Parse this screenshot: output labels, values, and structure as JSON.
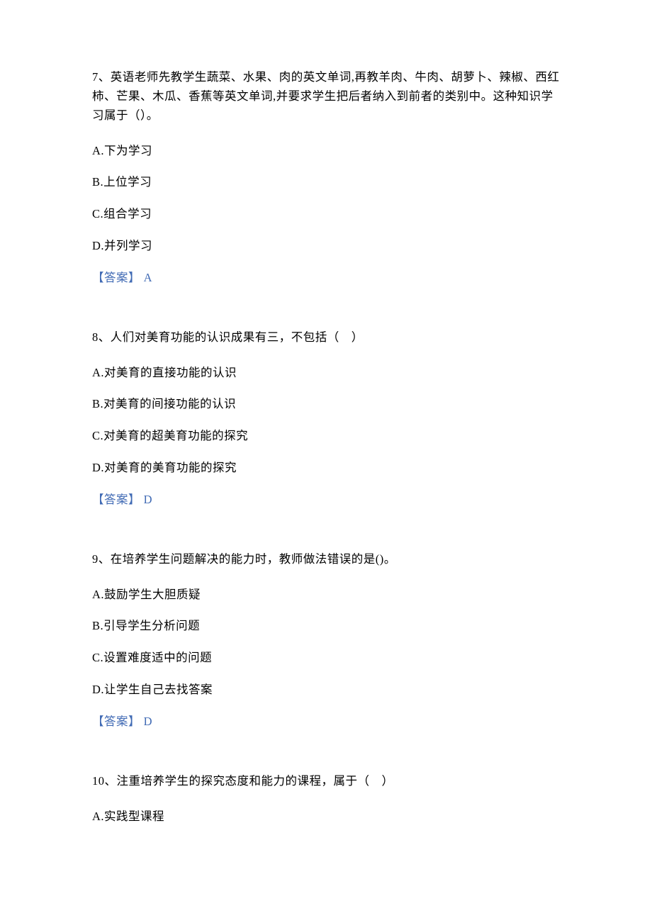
{
  "text_color": "#000000",
  "answer_color": "#406ab4",
  "background_color": "#ffffff",
  "font_size": 16.5,
  "questions": [
    {
      "number": "7、",
      "text": "英语老师先教学生蔬菜、水果、肉的英文单词,再教羊肉、牛肉、胡萝卜、辣椒、西红柿、芒果、木瓜、香蕉等英文单词,并要求学生把后者纳入到前者的类别中。这种知识学习属于（）。",
      "options": [
        "A.下为学习",
        "B.上位学习",
        "C.组合学习",
        "D.并列学习"
      ],
      "answer_label": "【答案】",
      "answer_value": " A"
    },
    {
      "number": "8、",
      "text": "人们对美育功能的认识成果有三，不包括（　）",
      "options": [
        "A.对美育的直接功能的认识",
        "B.对美育的间接功能的认识",
        "C.对美育的超美育功能的探究",
        "D.对美育的美育功能的探究"
      ],
      "answer_label": "【答案】",
      "answer_value": " D"
    },
    {
      "number": "9、",
      "text": "在培养学生问题解决的能力时，教师做法错误的是()。",
      "options": [
        "A.鼓励学生大胆质疑",
        "B.引导学生分析问题",
        "C.设置难度适中的问题",
        "D.让学生自己去找答案"
      ],
      "answer_label": "【答案】",
      "answer_value": " D"
    },
    {
      "number": "10、",
      "text": "注重培养学生的探究态度和能力的课程，属于（　）",
      "options": [
        "A.实践型课程"
      ],
      "answer_label": "",
      "answer_value": ""
    }
  ]
}
